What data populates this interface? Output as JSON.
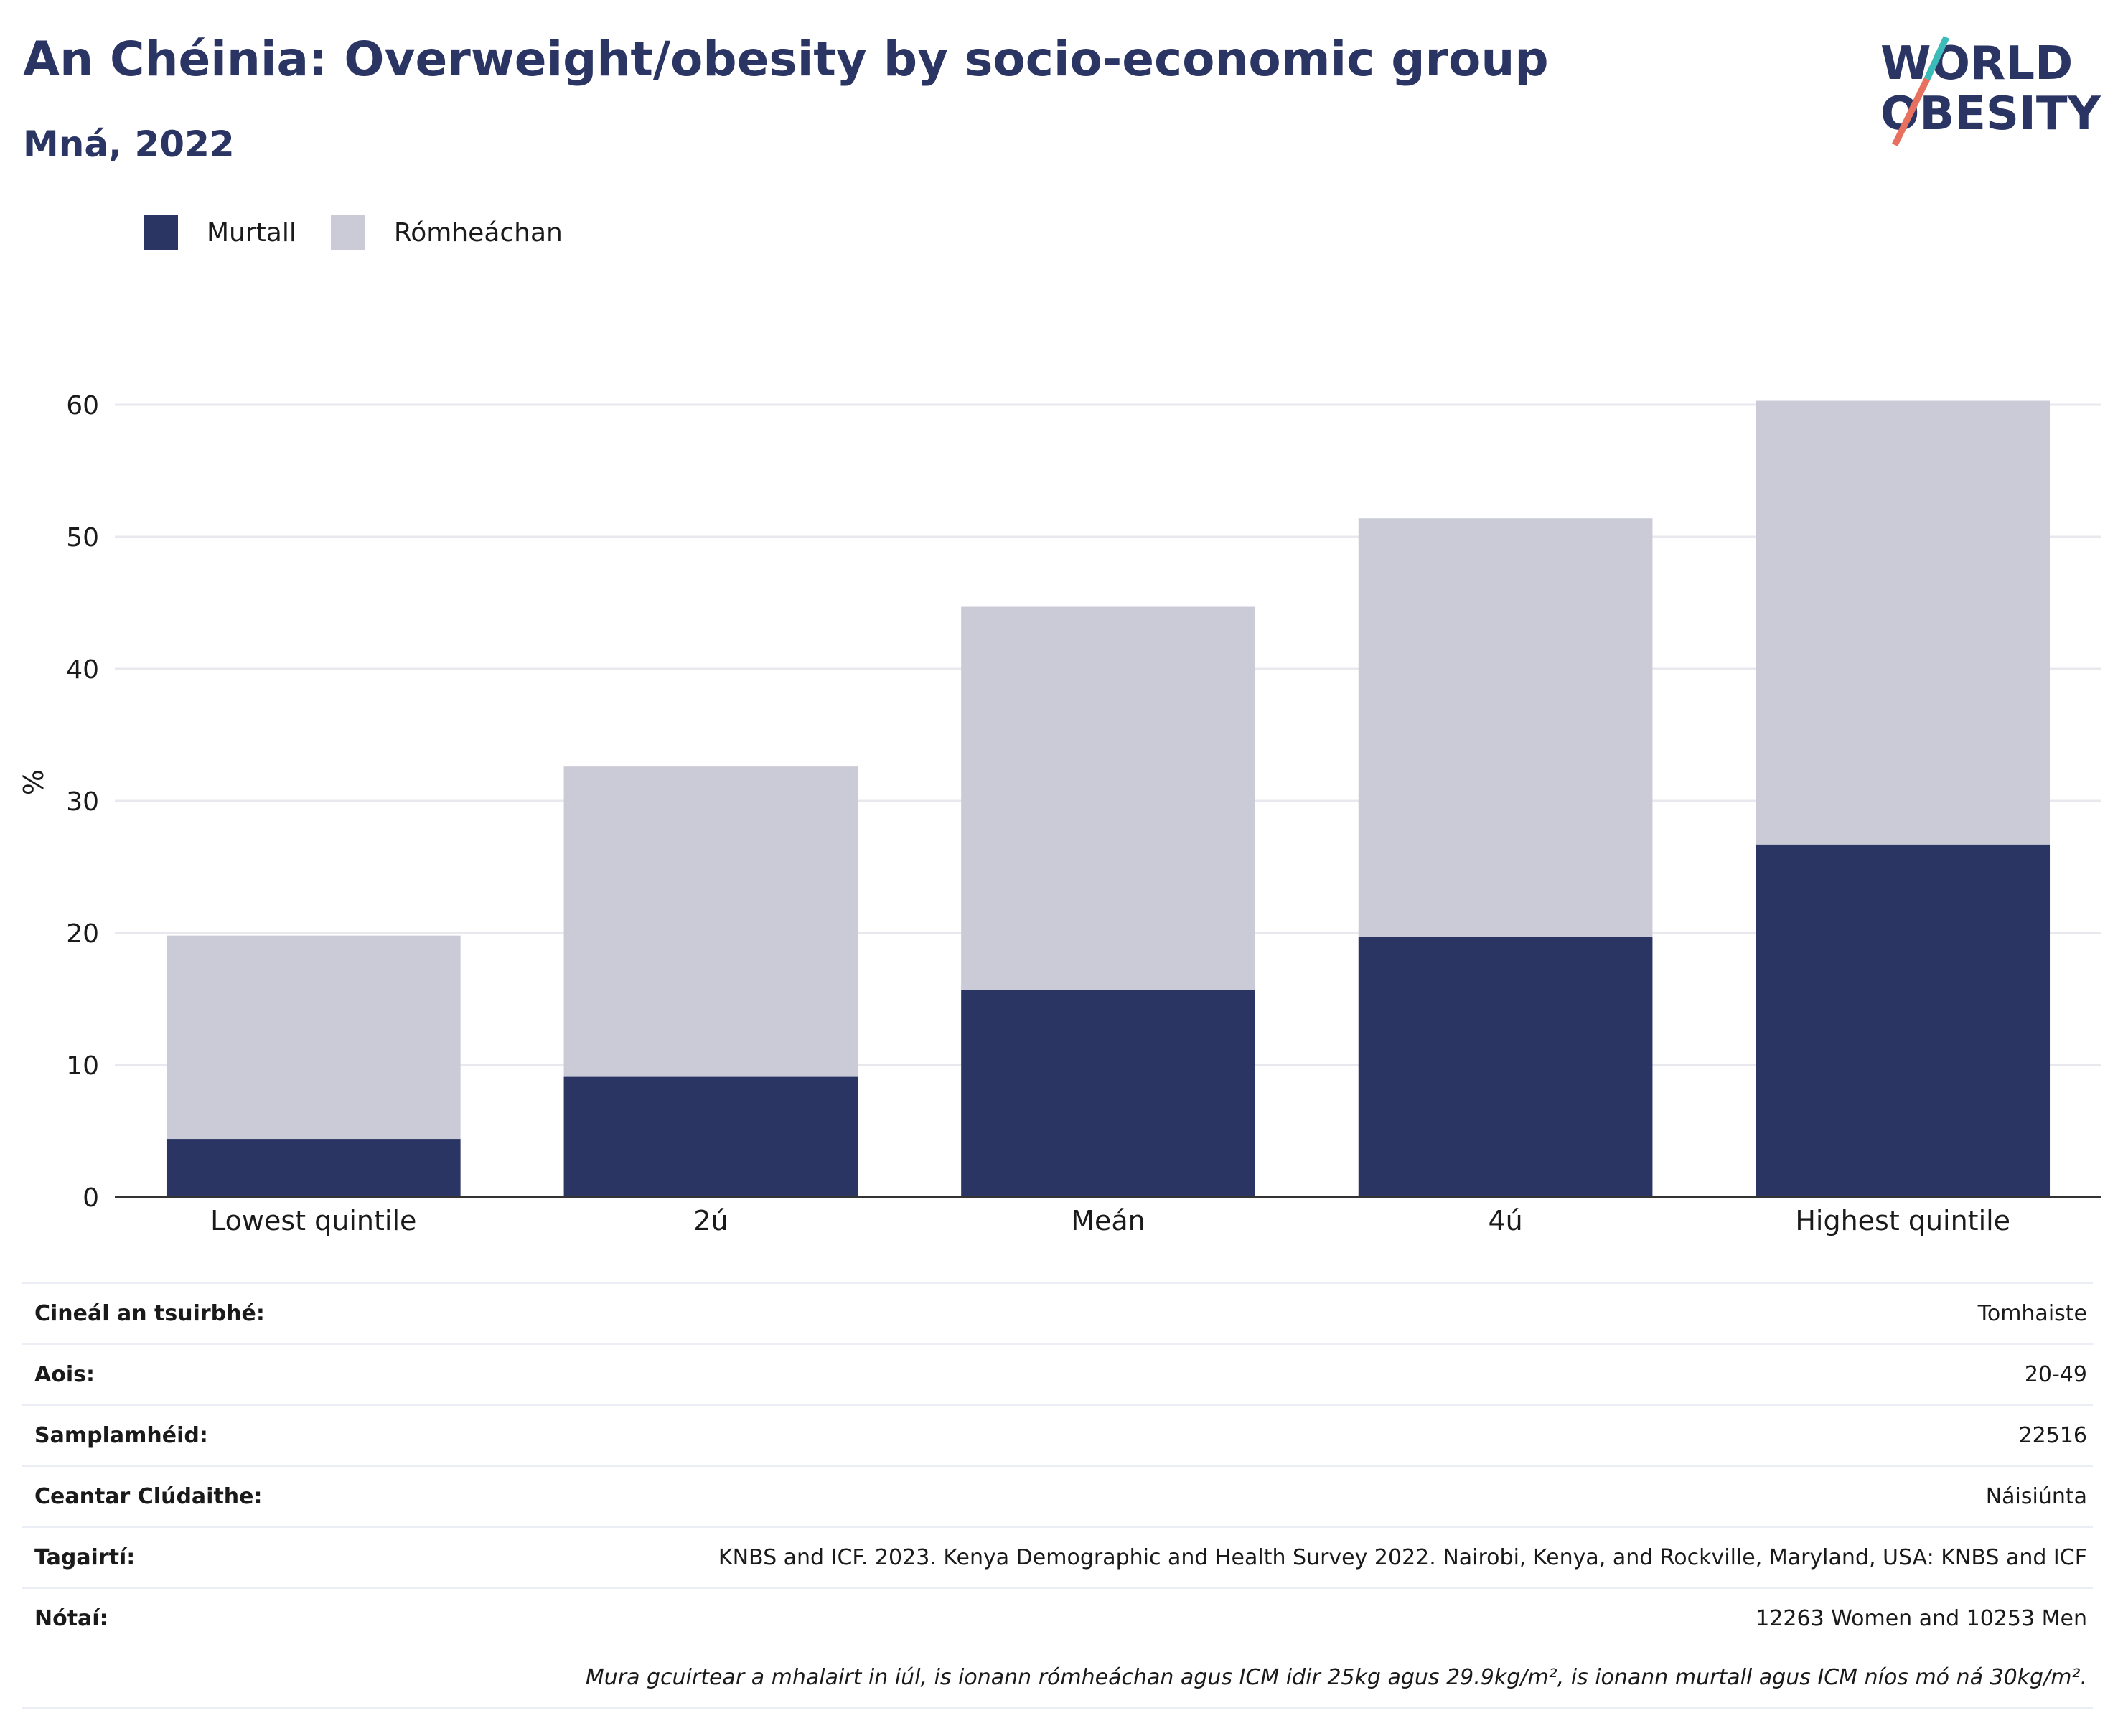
{
  "header": {
    "title": "An Chéinia: Overweight/obesity by socio-economic group",
    "subtitle": "Mná, 2022"
  },
  "logo": {
    "line1": "WORLD",
    "line2": "OBESITY"
  },
  "colors": {
    "obese": "#2a3564",
    "overweight": "#cacbd6",
    "title": "#2a3564",
    "grid": "#e8e8ee",
    "axis": "#333333"
  },
  "chart_data": {
    "type": "bar",
    "stacked": true,
    "categories": [
      "Lowest quintile",
      "2ú",
      "Meán",
      "4ú",
      "Highest quintile"
    ],
    "series": [
      {
        "name": "Murtall",
        "values": [
          4.4,
          9.1,
          15.7,
          19.7,
          26.7
        ]
      },
      {
        "name": "Rómheáchan",
        "values": [
          15.4,
          23.5,
          29.0,
          31.7,
          33.6
        ]
      }
    ],
    "ylabel": "%",
    "ylim": [
      0,
      60
    ],
    "yticks": [
      "0",
      "10",
      "20",
      "30",
      "40",
      "50",
      "60"
    ],
    "grid": true,
    "legend_position": "top-left"
  },
  "info": {
    "rows": [
      {
        "key": "Cineál an tsuirbhé:",
        "value": "Tomhaiste"
      },
      {
        "key": "Aois:",
        "value": "20-49"
      },
      {
        "key": "Samplamhéid:",
        "value": "22516"
      },
      {
        "key": "Ceantar Clúdaithe:",
        "value": "Náisiúnta"
      },
      {
        "key": "Tagairtí:",
        "value": "KNBS and ICF. 2023. Kenya Demographic and Health Survey 2022. Nairobi, Kenya, and Rockville, Maryland, USA: KNBS and ICF"
      },
      {
        "key": "Nótaí:",
        "value": "12263 Women and 10253 Men"
      }
    ],
    "footnote": "Mura gcuirtear a mhalairt in iúl, is ionann rómheáchan agus ICM idir 25kg agus 29.9kg/m², is ionann murtall agus ICM níos mó ná 30kg/m²."
  }
}
